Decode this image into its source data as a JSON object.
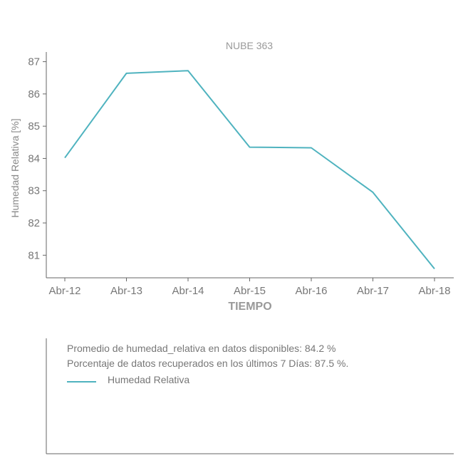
{
  "chart_data": {
    "type": "line",
    "title": "NUBE 363",
    "xlabel": "TIEMPO",
    "ylabel": "Humedad Relativa [%]",
    "categories": [
      "Abr-12",
      "Abr-13",
      "Abr-14",
      "Abr-15",
      "Abr-16",
      "Abr-17",
      "Abr-18"
    ],
    "series": [
      {
        "name": "Humedad Relativa",
        "values": [
          84.02,
          86.64,
          86.72,
          84.35,
          84.33,
          82.95,
          80.58
        ],
        "color": "#4fb3bf"
      }
    ],
    "ylim": [
      80.3,
      87.3
    ],
    "yticks": [
      81,
      82,
      83,
      84,
      85,
      86,
      87
    ],
    "grid": false
  },
  "legend": {
    "stats": [
      "Promedio de humedad_relativa en datos disponibles: 84.2 %",
      "Porcentaje de datos recuperados en los últimos 7 Días: 87.5 %."
    ],
    "entry_label": "Humedad Relativa",
    "entry_color": "#4fb3bf"
  }
}
